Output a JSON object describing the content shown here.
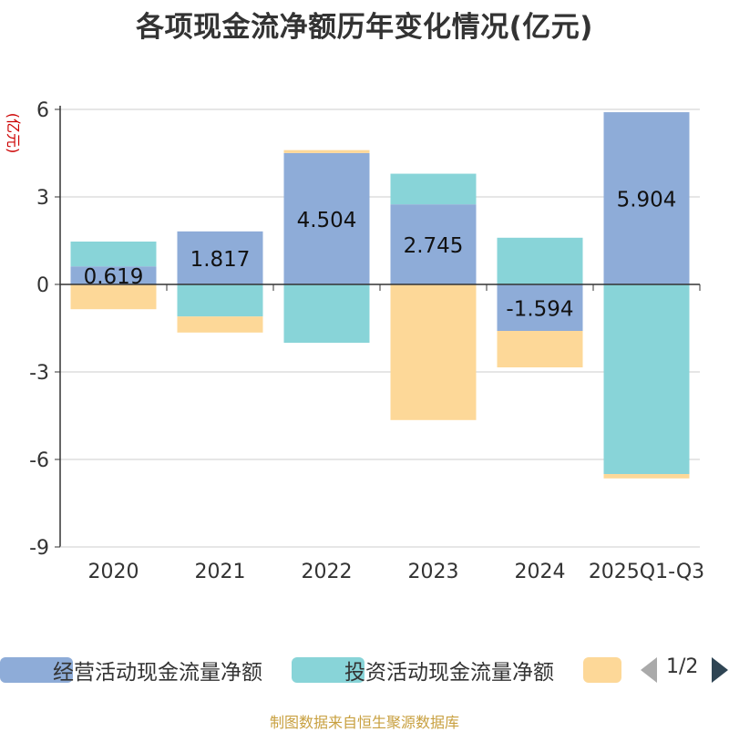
{
  "title": "各项现金流净额历年变化情况(亿元)",
  "source": "制图数据来自恒生聚源数据库",
  "pager": {
    "text": "1/2"
  },
  "colors": {
    "operating": "#8eacd8",
    "investing": "#88d4d8",
    "financing": "#fdd898"
  },
  "chart_data": {
    "type": "bar",
    "stacked": true,
    "title": "各项现金流净额历年变化情况(亿元)",
    "ylabel": "(亿元)",
    "xlabel": "",
    "ylim": [
      -9,
      6
    ],
    "yticks": [
      6,
      3,
      0,
      -3,
      -6,
      -9
    ],
    "categories": [
      "2020",
      "2021",
      "2022",
      "2023",
      "2024",
      "2025Q1-Q3"
    ],
    "series": [
      {
        "name": "经营活动现金流量净额",
        "values": [
          0.619,
          1.817,
          4.504,
          2.745,
          -1.594,
          5.904
        ],
        "labels": [
          "0.619",
          "1.817",
          "4.504",
          "2.745",
          "-1.594",
          "5.904"
        ]
      },
      {
        "name": "投资活动现金流量净额",
        "values": [
          0.85,
          -1.1,
          -2.0,
          1.05,
          1.6,
          -6.5
        ]
      },
      {
        "name": "",
        "values": [
          -0.85,
          -0.55,
          0.1,
          -4.65,
          -1.25,
          -0.15
        ]
      }
    ],
    "legend": "bottom"
  }
}
